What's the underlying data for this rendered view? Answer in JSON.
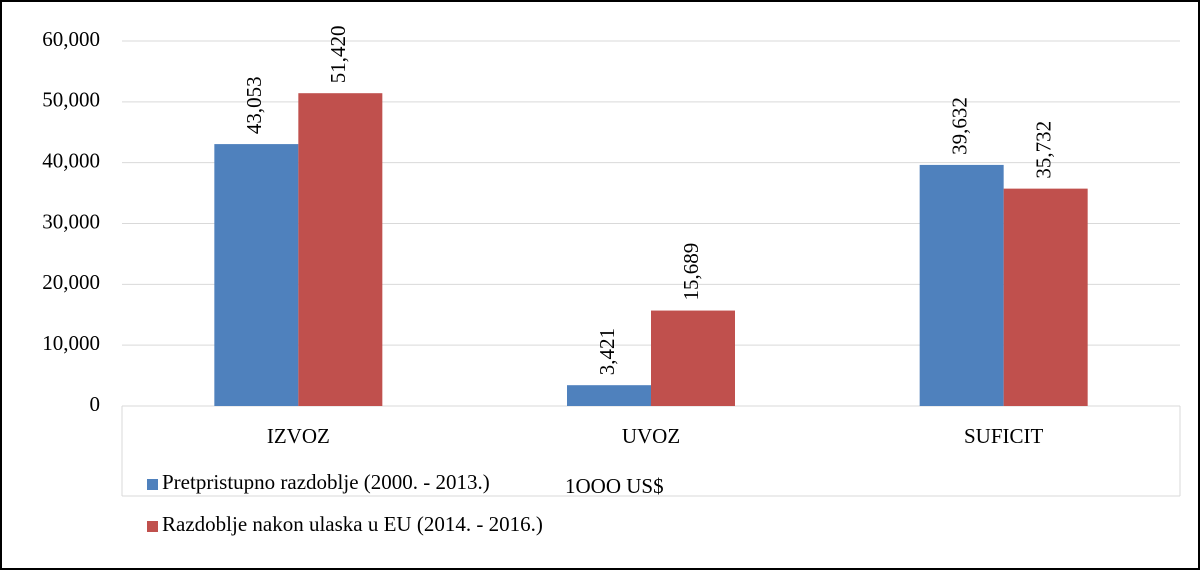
{
  "chart_data": {
    "type": "bar",
    "categories": [
      "IZVOZ",
      "UVOZ",
      "SUFICIT"
    ],
    "series": [
      {
        "name": "Pretpristupno razdoblje (2000. - 2013.)",
        "color": "#4f81bd",
        "values": [
          43053,
          3421,
          39632
        ],
        "value_labels": [
          "43,053",
          "3,421",
          "39,632"
        ]
      },
      {
        "name": "Razdoblje nakon ulaska u EU (2014. - 2016.)",
        "color": "#c0504d",
        "values": [
          51420,
          15689,
          35732
        ],
        "value_labels": [
          "51,420",
          "15,689",
          "35,732"
        ]
      }
    ],
    "annotation": "1OOO US$",
    "ylim": [
      0,
      60000
    ],
    "yticks": [
      0,
      {
        "value": 10000,
        "label": "10,000"
      },
      {
        "value": 20000,
        "label": "20,000"
      },
      {
        "value": 30000,
        "label": "30,000"
      },
      {
        "value": 40000,
        "label": "40,000"
      },
      {
        "value": 50000,
        "label": "50,000"
      },
      {
        "value": 60000,
        "label": "60,000"
      }
    ],
    "grid": true
  }
}
